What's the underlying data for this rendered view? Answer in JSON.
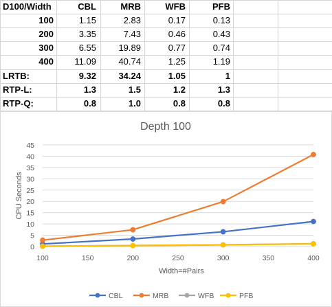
{
  "sheet": {
    "header": [
      "D100/Width",
      "CBL",
      "MRB",
      "WFB",
      "PFB"
    ],
    "rows": [
      [
        "100",
        "1.15",
        "2.83",
        "0.17",
        "0.13"
      ],
      [
        "200",
        "3.35",
        "7.43",
        "0.46",
        "0.43"
      ],
      [
        "300",
        "6.55",
        "19.89",
        "0.77",
        "0.74"
      ],
      [
        "400",
        "11.09",
        "40.74",
        "1.25",
        "1.19"
      ],
      [
        "LRTB:",
        "9.32",
        "34.24",
        "1.05",
        "1"
      ],
      [
        "RTP-L:",
        "1.3",
        "1.5",
        "1.2",
        "1.3"
      ],
      [
        "RTP-Q:",
        "0.8",
        "1.0",
        "0.8",
        "0.8"
      ]
    ]
  },
  "chart_data": {
    "type": "line",
    "title": "Depth 100",
    "xlabel": "Width=#Pairs",
    "ylabel": "CPU Seconds",
    "x": [
      100,
      200,
      300,
      400
    ],
    "xlim": [
      100,
      400
    ],
    "ylim": [
      0,
      45
    ],
    "xticks": [
      100,
      150,
      200,
      250,
      300,
      350,
      400
    ],
    "yticks": [
      0,
      5,
      10,
      15,
      20,
      25,
      30,
      35,
      40,
      45
    ],
    "grid": true,
    "legend_position": "bottom",
    "series": [
      {
        "name": "CBL",
        "values": [
          1.15,
          3.35,
          6.55,
          11.09
        ],
        "color": "#4472c4"
      },
      {
        "name": "MRB",
        "values": [
          2.83,
          7.43,
          19.89,
          40.74
        ],
        "color": "#ed7d31"
      },
      {
        "name": "WFB",
        "values": [
          0.17,
          0.46,
          0.77,
          1.25
        ],
        "color": "#a5a5a5"
      },
      {
        "name": "PFB",
        "values": [
          0.13,
          0.43,
          0.74,
          1.19
        ],
        "color": "#ffc000"
      }
    ]
  }
}
